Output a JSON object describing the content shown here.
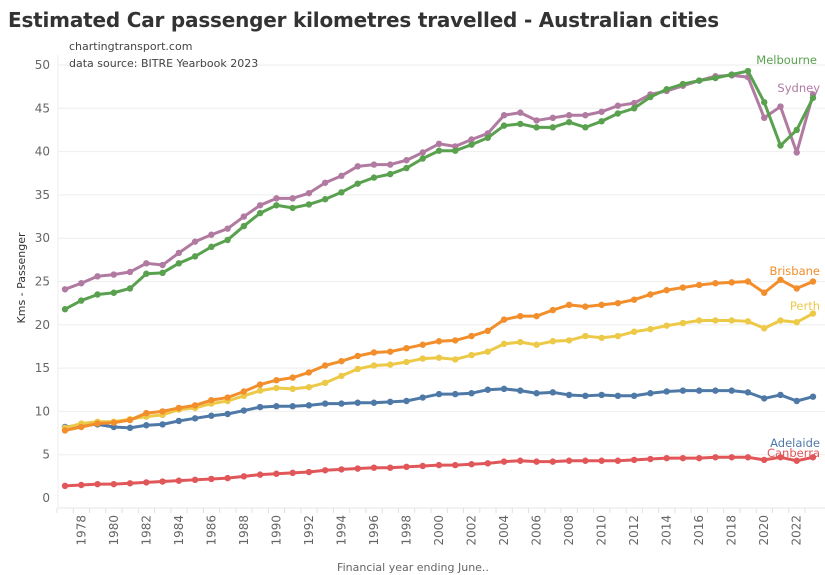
{
  "chart_data": {
    "type": "line",
    "title": "Estimated Car passenger kilometres travelled - Australian cities",
    "annotations": [
      "chartingtransport.com",
      "data source: BITRE Yearbook 2023"
    ],
    "xlabel": "Financial year ending June..",
    "ylabel": "Kms - Passenger",
    "ylim": [
      0,
      50
    ],
    "yticks": [
      0,
      5,
      10,
      15,
      20,
      25,
      30,
      35,
      40,
      45,
      50
    ],
    "xlim": [
      1977,
      2023
    ],
    "xtick_labels": [
      "1978",
      "1980",
      "1982",
      "1984",
      "1986",
      "1988",
      "1990",
      "1992",
      "1994",
      "1996",
      "1998",
      "2000",
      "2002",
      "2004",
      "2006",
      "2008",
      "2010",
      "2012",
      "2014",
      "2016",
      "2018",
      "2020",
      "2022"
    ],
    "grid": true,
    "legend": "direct labels at line ends (right)",
    "x": [
      1977,
      1978,
      1979,
      1980,
      1981,
      1982,
      1983,
      1984,
      1985,
      1986,
      1987,
      1988,
      1989,
      1990,
      1991,
      1992,
      1993,
      1994,
      1995,
      1996,
      1997,
      1998,
      1999,
      2000,
      2001,
      2002,
      2003,
      2004,
      2005,
      2006,
      2007,
      2008,
      2009,
      2010,
      2011,
      2012,
      2013,
      2014,
      2015,
      2016,
      2017,
      2018,
      2019,
      2020,
      2021,
      2022,
      2023
    ],
    "series": [
      {
        "name": "Melbourne",
        "color": "#59a14f",
        "values": [
          21.8,
          22.8,
          23.5,
          23.7,
          24.2,
          25.9,
          26.0,
          27.1,
          27.9,
          29.0,
          29.8,
          31.4,
          32.9,
          33.8,
          33.5,
          33.9,
          34.5,
          35.3,
          36.3,
          37.0,
          37.4,
          38.1,
          39.2,
          40.1,
          40.1,
          40.8,
          41.6,
          43.0,
          43.2,
          42.8,
          42.8,
          43.4,
          42.8,
          43.5,
          44.4,
          45.0,
          46.3,
          47.2,
          47.8,
          48.2,
          48.5,
          48.9,
          49.3,
          45.7,
          40.7,
          42.5,
          46.2
        ]
      },
      {
        "name": "Sydney",
        "color": "#b07aa1",
        "values": [
          24.1,
          24.8,
          25.6,
          25.8,
          26.1,
          27.1,
          26.9,
          28.3,
          29.6,
          30.4,
          31.1,
          32.5,
          33.8,
          34.6,
          34.6,
          35.2,
          36.4,
          37.2,
          38.3,
          38.5,
          38.5,
          39.0,
          39.9,
          40.9,
          40.6,
          41.4,
          42.1,
          44.2,
          44.5,
          43.6,
          43.9,
          44.2,
          44.2,
          44.6,
          45.3,
          45.6,
          46.6,
          47.0,
          47.6,
          48.2,
          48.7,
          48.8,
          48.6,
          43.9,
          45.2,
          39.9,
          46.6
        ]
      },
      {
        "name": "Brisbane",
        "color": "#f28e2b",
        "values": [
          7.8,
          8.2,
          8.6,
          8.7,
          9.0,
          9.8,
          10.0,
          10.4,
          10.7,
          11.3,
          11.6,
          12.3,
          13.1,
          13.6,
          13.9,
          14.5,
          15.3,
          15.8,
          16.4,
          16.8,
          16.9,
          17.3,
          17.7,
          18.1,
          18.2,
          18.7,
          19.3,
          20.6,
          21.0,
          21.0,
          21.7,
          22.3,
          22.1,
          22.3,
          22.5,
          22.9,
          23.5,
          24.0,
          24.3,
          24.6,
          24.8,
          24.9,
          25.0,
          23.7,
          25.2,
          24.2,
          25.0
        ]
      },
      {
        "name": "Perth",
        "color": "#edc948",
        "values": [
          8.1,
          8.6,
          8.8,
          8.8,
          9.1,
          9.4,
          9.6,
          10.2,
          10.4,
          10.9,
          11.2,
          11.8,
          12.4,
          12.7,
          12.6,
          12.8,
          13.3,
          14.1,
          14.9,
          15.3,
          15.4,
          15.7,
          16.1,
          16.2,
          16.0,
          16.5,
          16.9,
          17.8,
          18.0,
          17.7,
          18.1,
          18.2,
          18.7,
          18.5,
          18.7,
          19.2,
          19.5,
          19.9,
          20.2,
          20.5,
          20.5,
          20.5,
          20.4,
          19.6,
          20.5,
          20.3,
          21.3
        ]
      },
      {
        "name": "Adelaide",
        "color": "#4e79a7",
        "values": [
          8.2,
          8.4,
          8.5,
          8.2,
          8.1,
          8.4,
          8.5,
          8.9,
          9.2,
          9.5,
          9.7,
          10.1,
          10.5,
          10.6,
          10.6,
          10.7,
          10.9,
          10.9,
          11.0,
          11.0,
          11.1,
          11.2,
          11.6,
          12.0,
          12.0,
          12.1,
          12.5,
          12.6,
          12.4,
          12.1,
          12.2,
          11.9,
          11.8,
          11.9,
          11.8,
          11.8,
          12.1,
          12.3,
          12.4,
          12.4,
          12.4,
          12.4,
          12.2,
          11.5,
          11.9,
          11.2,
          11.7
        ]
      },
      {
        "name": "Canberra",
        "color": "#e15759",
        "values": [
          1.4,
          1.5,
          1.6,
          1.6,
          1.7,
          1.8,
          1.9,
          2.0,
          2.1,
          2.2,
          2.3,
          2.5,
          2.7,
          2.8,
          2.9,
          3.0,
          3.2,
          3.3,
          3.4,
          3.5,
          3.5,
          3.6,
          3.7,
          3.8,
          3.8,
          3.9,
          4.0,
          4.2,
          4.3,
          4.2,
          4.2,
          4.3,
          4.3,
          4.3,
          4.3,
          4.4,
          4.5,
          4.6,
          4.6,
          4.6,
          4.7,
          4.7,
          4.7,
          4.4,
          4.7,
          4.3,
          4.7
        ]
      }
    ]
  }
}
